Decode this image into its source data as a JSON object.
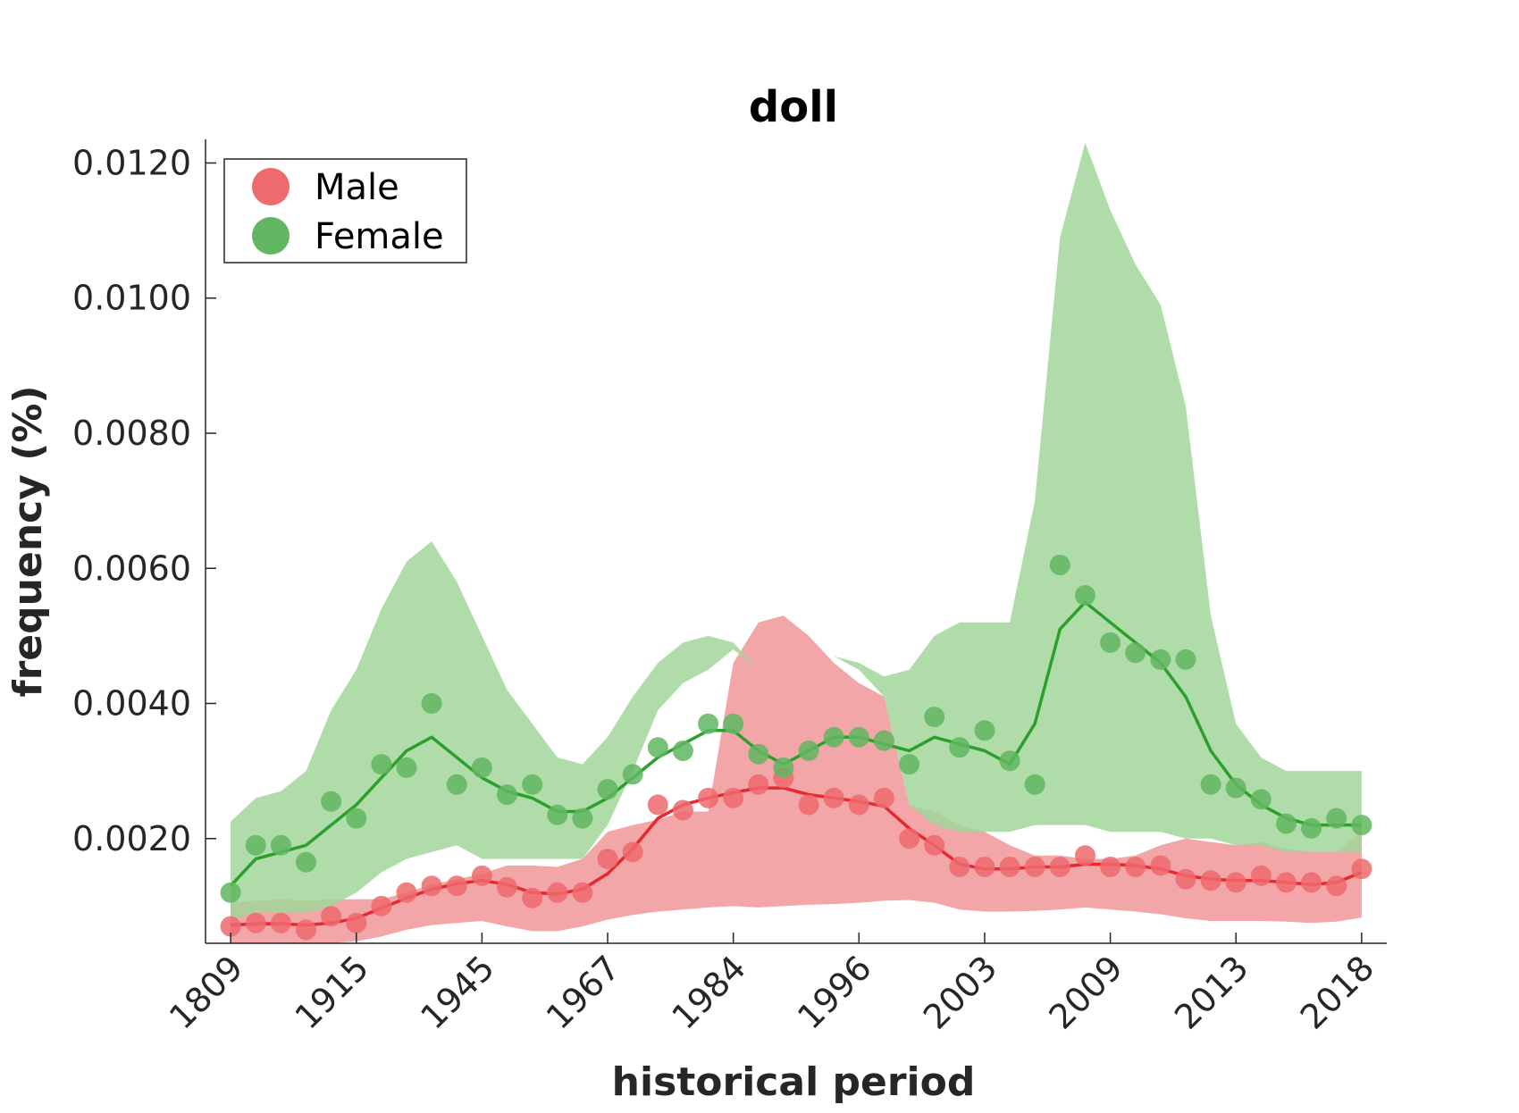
{
  "chart_data": {
    "type": "line",
    "title": "doll",
    "xlabel": "historical period",
    "ylabel": "frequency (%)",
    "x_tick_labels": [
      "1809",
      "1915",
      "1945",
      "1967",
      "1984",
      "1996",
      "2003",
      "2009",
      "2013",
      "2018"
    ],
    "x_tick_index": [
      0,
      5,
      10,
      15,
      20,
      25,
      30,
      35,
      40,
      45
    ],
    "x_range": [
      -1,
      46
    ],
    "y_ticks": [
      0.002,
      0.004,
      0.006,
      0.008,
      0.01,
      0.012
    ],
    "y_tick_labels": [
      "0.0020",
      "0.0040",
      "0.0060",
      "0.0080",
      "0.0100",
      "0.0120"
    ],
    "ylim": [
      0.00045,
      0.01235
    ],
    "grid": false,
    "legend": {
      "position": "top-left",
      "entries": [
        "Male",
        "Female"
      ]
    },
    "series": [
      {
        "name": "Male",
        "color": "#e8272f",
        "marker_color": "#ee6a6d",
        "band_color": "#f19c9f",
        "points": [
          0.0007,
          0.00075,
          0.00075,
          0.00065,
          0.00085,
          0.00075,
          0.001,
          0.0012,
          0.0013,
          0.0013,
          0.00145,
          0.00128,
          0.00112,
          0.0012,
          0.0012,
          0.0017,
          0.0018,
          0.0025,
          0.00242,
          0.0026,
          0.0026,
          0.0028,
          0.0029,
          0.0025,
          0.0026,
          0.0025,
          0.0026,
          0.002,
          0.0019,
          0.00158,
          0.00158,
          0.00158,
          0.00158,
          0.00158,
          0.00175,
          0.00158,
          0.00158,
          0.0016,
          0.0014,
          0.00138,
          0.00135,
          0.00145,
          0.00135,
          0.00135,
          0.0013,
          0.00155
        ],
        "trend": [
          0.00072,
          0.00074,
          0.00074,
          0.00072,
          0.00075,
          0.00082,
          0.00097,
          0.00112,
          0.00125,
          0.00133,
          0.00138,
          0.00132,
          0.0012,
          0.00118,
          0.00125,
          0.00148,
          0.00185,
          0.0023,
          0.0025,
          0.0026,
          0.00268,
          0.00275,
          0.00275,
          0.00265,
          0.0026,
          0.00255,
          0.00248,
          0.00215,
          0.0019,
          0.00162,
          0.00155,
          0.00155,
          0.00158,
          0.00158,
          0.00162,
          0.00162,
          0.0016,
          0.00155,
          0.00145,
          0.0014,
          0.00138,
          0.00138,
          0.00135,
          0.00132,
          0.00135,
          0.0015
        ],
        "band_upper": [
          0.00105,
          0.00108,
          0.0011,
          0.00108,
          0.0011,
          0.0011,
          0.0011,
          0.0012,
          0.00132,
          0.0014,
          0.00148,
          0.0016,
          0.0016,
          0.00158,
          0.0017,
          0.0021,
          0.0022,
          0.00228,
          0.0024,
          0.0024,
          0.0046,
          0.0052,
          0.0053,
          0.005,
          0.0046,
          0.0043,
          0.0041,
          0.0025,
          0.0024,
          0.0022,
          0.0021,
          0.0019,
          0.00175,
          0.00175,
          0.0017,
          0.0017,
          0.00175,
          0.0019,
          0.002,
          0.00195,
          0.0019,
          0.00195,
          0.00185,
          0.0018,
          0.0018,
          0.0021
        ],
        "band_lower": [
          0.00045,
          0.00045,
          0.00045,
          0.00045,
          0.00045,
          0.00048,
          0.00055,
          0.00065,
          0.00072,
          0.00075,
          0.00078,
          0.0007,
          0.00063,
          0.00063,
          0.0007,
          0.0008,
          0.00087,
          0.00092,
          0.00095,
          0.00098,
          0.001,
          0.00098,
          0.001,
          0.00102,
          0.00103,
          0.00105,
          0.00108,
          0.00109,
          0.00105,
          0.00095,
          0.00092,
          0.00092,
          0.00093,
          0.00095,
          0.00098,
          0.00095,
          0.00092,
          0.00088,
          0.00082,
          0.00078,
          0.00078,
          0.00078,
          0.00077,
          0.00075,
          0.00077,
          0.00083
        ]
      },
      {
        "name": "Female",
        "color": "#2ca02c",
        "marker_color": "#60b661",
        "band_color": "#a1d69a",
        "points": [
          0.0012,
          0.0019,
          0.0019,
          0.00165,
          0.00255,
          0.0023,
          0.0031,
          0.00305,
          0.004,
          0.0028,
          0.00305,
          0.00265,
          0.0028,
          0.00235,
          0.0023,
          0.00273,
          0.00295,
          0.00335,
          0.0033,
          0.0037,
          0.0037,
          0.00325,
          0.00305,
          0.0033,
          0.0035,
          0.0035,
          0.00345,
          0.0031,
          0.0038,
          0.00335,
          0.0036,
          0.00315,
          0.0028,
          0.00605,
          0.0056,
          0.0049,
          0.00475,
          0.00465,
          0.00465,
          0.0028,
          0.00275,
          0.00258,
          0.00222,
          0.00215,
          0.0023,
          0.0022
        ],
        "trend": [
          0.0013,
          0.0017,
          0.0018,
          0.0019,
          0.0022,
          0.0025,
          0.0029,
          0.0033,
          0.0035,
          0.0032,
          0.0029,
          0.0027,
          0.0026,
          0.0024,
          0.0024,
          0.0026,
          0.0029,
          0.0032,
          0.0034,
          0.0036,
          0.0036,
          0.0033,
          0.0031,
          0.0033,
          0.0035,
          0.0035,
          0.0034,
          0.0033,
          0.0035,
          0.0034,
          0.0033,
          0.0031,
          0.0037,
          0.0051,
          0.0055,
          0.0052,
          0.0049,
          0.0046,
          0.0041,
          0.0033,
          0.0028,
          0.0025,
          0.0023,
          0.0022,
          0.0022,
          0.0022
        ],
        "band_upper": [
          0.00225,
          0.0026,
          0.0027,
          0.003,
          0.0039,
          0.0045,
          0.0054,
          0.0061,
          0.0064,
          0.0058,
          0.005,
          0.0042,
          0.0037,
          0.0032,
          0.0031,
          0.0035,
          0.0041,
          0.0046,
          0.0049,
          0.005,
          0.0049,
          0.0045,
          0.0043,
          0.0045,
          0.0047,
          0.0046,
          0.0044,
          0.0045,
          0.005,
          0.0052,
          0.0052,
          0.0052,
          0.007,
          0.0109,
          0.0123,
          0.0113,
          0.0105,
          0.0099,
          0.0084,
          0.0053,
          0.0037,
          0.0032,
          0.003,
          0.003,
          0.003,
          0.003
        ],
        "band_lower": [
          0.0008,
          0.0009,
          0.0009,
          0.0009,
          0.001,
          0.0012,
          0.0015,
          0.0017,
          0.0018,
          0.0019,
          0.0017,
          0.0017,
          0.0017,
          0.0017,
          0.0017,
          0.0022,
          0.003,
          0.0039,
          0.0043,
          0.0045,
          0.0048,
          0.0045,
          0.0043,
          0.0045,
          0.0047,
          0.0045,
          0.0041,
          0.0025,
          0.0022,
          0.0021,
          0.0021,
          0.0021,
          0.0022,
          0.0022,
          0.0022,
          0.0021,
          0.0021,
          0.0021,
          0.002,
          0.002,
          0.0019,
          0.0019,
          0.0018,
          0.0018,
          0.0018,
          0.0018
        ]
      }
    ]
  }
}
